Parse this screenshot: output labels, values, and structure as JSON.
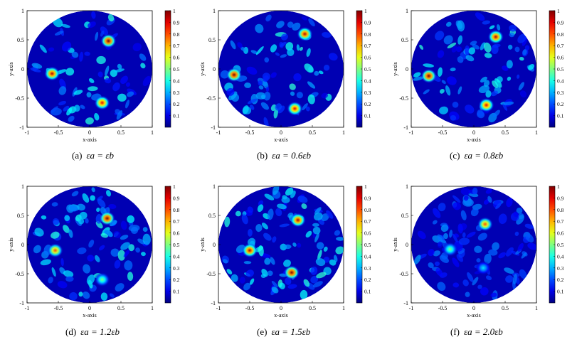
{
  "chart_data": [
    {
      "type": "heatmap",
      "panel_label": "(a)",
      "caption_expr": "εa = εb",
      "xlabel": "x-axis",
      "ylabel": "y-axis",
      "xlim": [
        -1,
        1
      ],
      "ylim": [
        -1,
        1
      ],
      "x_ticks": [
        "-1",
        "-0.5",
        "0",
        "0.5",
        "1"
      ],
      "y_ticks": [
        "-1",
        "-0.5",
        "0",
        "0.5",
        "1"
      ],
      "colorbar_ticks": [
        "0.1",
        "0.2",
        "0.3",
        "0.4",
        "0.5",
        "0.6",
        "0.7",
        "0.8",
        "0.9",
        "1"
      ],
      "color_range": [
        0,
        1
      ],
      "colormap": "jet",
      "domain_shape": "disk of radius 1",
      "peaks": [
        {
          "x": 0.3,
          "y": 0.48,
          "value": 1.0
        },
        {
          "x": -0.6,
          "y": -0.08,
          "value": 0.95
        },
        {
          "x": 0.2,
          "y": -0.58,
          "value": 0.9
        }
      ]
    },
    {
      "type": "heatmap",
      "panel_label": "(b)",
      "caption_expr": "εa = 0.6εb",
      "xlabel": "x-axis",
      "ylabel": "y-axis",
      "xlim": [
        -1,
        1
      ],
      "ylim": [
        -1,
        1
      ],
      "x_ticks": [
        "-1",
        "-0.5",
        "0",
        "0.5",
        "1"
      ],
      "y_ticks": [
        "-1",
        "-0.5",
        "0",
        "0.5",
        "1"
      ],
      "colorbar_ticks": [
        "0.1",
        "0.2",
        "0.3",
        "0.4",
        "0.5",
        "0.6",
        "0.7",
        "0.8",
        "0.9",
        "1"
      ],
      "color_range": [
        0,
        1
      ],
      "colormap": "jet",
      "domain_shape": "disk of radius 1",
      "peaks": [
        {
          "x": 0.38,
          "y": 0.6,
          "value": 0.95
        },
        {
          "x": -0.75,
          "y": -0.1,
          "value": 1.0
        },
        {
          "x": 0.22,
          "y": -0.68,
          "value": 0.9
        }
      ]
    },
    {
      "type": "heatmap",
      "panel_label": "(c)",
      "caption_expr": "εa = 0.8εb",
      "xlabel": "x-axis",
      "ylabel": "y-axis",
      "xlim": [
        -1,
        1
      ],
      "ylim": [
        -1,
        1
      ],
      "x_ticks": [
        "-1",
        "-0.5",
        "0",
        "0.5",
        "1"
      ],
      "y_ticks": [
        "-1",
        "-0.5",
        "0",
        "0.5",
        "1"
      ],
      "colorbar_ticks": [
        "0.1",
        "0.2",
        "0.3",
        "0.4",
        "0.5",
        "0.6",
        "0.7",
        "0.8",
        "0.9",
        "1"
      ],
      "color_range": [
        0,
        1
      ],
      "colormap": "jet",
      "domain_shape": "disk of radius 1",
      "peaks": [
        {
          "x": 0.35,
          "y": 0.55,
          "value": 0.95
        },
        {
          "x": -0.72,
          "y": -0.12,
          "value": 1.0
        },
        {
          "x": 0.2,
          "y": -0.62,
          "value": 0.9
        }
      ]
    },
    {
      "type": "heatmap",
      "panel_label": "(d)",
      "caption_expr": "εa = 1.2εb",
      "xlabel": "x-axis",
      "ylabel": "y-axis",
      "xlim": [
        -1,
        1
      ],
      "ylim": [
        -1,
        1
      ],
      "x_ticks": [
        "-1",
        "-0.5",
        "0",
        "0.5",
        "1"
      ],
      "y_ticks": [
        "-1",
        "-0.5",
        "0",
        "0.5",
        "1"
      ],
      "colorbar_ticks": [
        "0.1",
        "0.2",
        "0.3",
        "0.4",
        "0.5",
        "0.6",
        "0.7",
        "0.8",
        "0.9",
        "1"
      ],
      "color_range": [
        0,
        1
      ],
      "colormap": "jet",
      "domain_shape": "disk of radius 1",
      "peaks": [
        {
          "x": 0.28,
          "y": 0.45,
          "value": 1.0
        },
        {
          "x": -0.55,
          "y": -0.1,
          "value": 0.8
        },
        {
          "x": 0.2,
          "y": -0.6,
          "value": 0.5
        }
      ]
    },
    {
      "type": "heatmap",
      "panel_label": "(e)",
      "caption_expr": "εa = 1.5εb",
      "xlabel": "x-axis",
      "ylabel": "y-axis",
      "xlim": [
        -1,
        1
      ],
      "ylim": [
        -1,
        1
      ],
      "x_ticks": [
        "-1",
        "-0.5",
        "0",
        "0.5",
        "1"
      ],
      "y_ticks": [
        "-1",
        "-0.5",
        "0",
        "0.5",
        "1"
      ],
      "colorbar_ticks": [
        "0.1",
        "0.2",
        "0.3",
        "0.4",
        "0.5",
        "0.6",
        "0.7",
        "0.8",
        "0.9",
        "1"
      ],
      "color_range": [
        0,
        1
      ],
      "colormap": "jet",
      "domain_shape": "disk of radius 1",
      "peaks": [
        {
          "x": 0.27,
          "y": 0.42,
          "value": 0.95
        },
        {
          "x": -0.5,
          "y": -0.1,
          "value": 0.95
        },
        {
          "x": 0.17,
          "y": -0.48,
          "value": 1.0
        }
      ]
    },
    {
      "type": "heatmap",
      "panel_label": "(f)",
      "caption_expr": "εa = 2.0εb",
      "xlabel": "x-axis",
      "ylabel": "y-axis",
      "xlim": [
        -1,
        1
      ],
      "ylim": [
        -1,
        1
      ],
      "x_ticks": [
        "-1",
        "-0.5",
        "0",
        "0.5",
        "1"
      ],
      "y_ticks": [
        "-1",
        "-0.5",
        "0",
        "0.5",
        "1"
      ],
      "colorbar_ticks": [
        "0.1",
        "0.2",
        "0.3",
        "0.4",
        "0.5",
        "0.6",
        "0.7",
        "0.8",
        "0.9",
        "1"
      ],
      "color_range": [
        0,
        1
      ],
      "colormap": "jet",
      "domain_shape": "disk of radius 1",
      "peaks": [
        {
          "x": 0.18,
          "y": 0.35,
          "value": 0.8
        },
        {
          "x": -0.38,
          "y": -0.08,
          "value": 0.5
        },
        {
          "x": 0.15,
          "y": -0.4,
          "value": 0.35
        }
      ]
    }
  ]
}
